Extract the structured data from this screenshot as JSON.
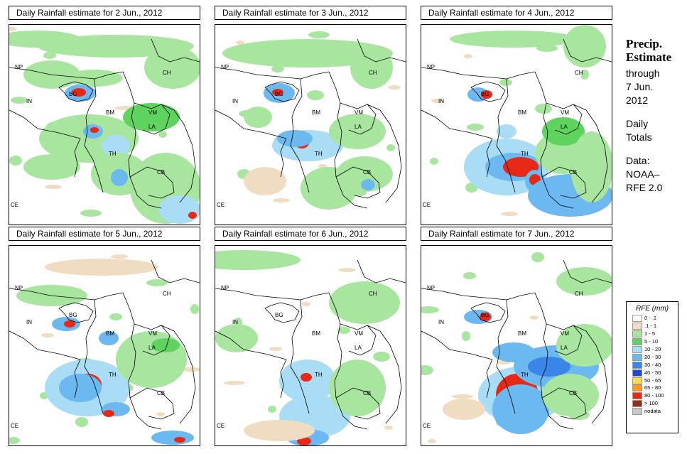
{
  "panels": [
    {
      "title": "Daily Rainfall estimate for  2 Jun., 2012"
    },
    {
      "title": "Daily Rainfall estimate for  3 Jun., 2012"
    },
    {
      "title": "Daily Rainfall estimate for  4 Jun., 2012"
    },
    {
      "title": "Daily Rainfall estimate for  5 Jun., 2012"
    },
    {
      "title": "Daily Rainfall estimate for  6 Jun., 2012"
    },
    {
      "title": "Daily Rainfall estimate for  7 Jun., 2012"
    }
  ],
  "map_labels": {
    "np": "NP",
    "ch": "CH",
    "in": "IN",
    "bg": "BG",
    "bm": "BM",
    "vm": "VM",
    "la": "LA",
    "th": "TH",
    "cb": "CB",
    "ce": "CE"
  },
  "sidebar": {
    "heading_1": "Precip.",
    "heading_2": "Estimate",
    "line_through": "through",
    "line_date": "7 Jun.",
    "line_year": "2012",
    "line_daily": "Daily",
    "line_totals": "Totals",
    "line_data": "Data:",
    "line_noaa": "NOAA–",
    "line_rfe": "RFE 2.0"
  },
  "legend": {
    "title": "RFE (mm)",
    "items": [
      {
        "label": "0 - .1",
        "color": "#ffffff"
      },
      {
        "label": ".1 - 1",
        "color": "#f0dcc0"
      },
      {
        "label": "1 - 5",
        "color": "#a8e6a0"
      },
      {
        "label": "5 - 10",
        "color": "#5ed35e"
      },
      {
        "label": "10 - 20",
        "color": "#a9dcf5"
      },
      {
        "label": "20 - 30",
        "color": "#6cb8f0"
      },
      {
        "label": "30 - 40",
        "color": "#3a86e8"
      },
      {
        "label": "40 - 50",
        "color": "#1e48d0"
      },
      {
        "label": "50 - 65",
        "color": "#ffdc50"
      },
      {
        "label": "65 - 80",
        "color": "#ff9a1e"
      },
      {
        "label": "80 - 100",
        "color": "#e62814"
      },
      {
        "label": "> 100",
        "color": "#962d1e"
      },
      {
        "label": "nodata",
        "color": "#c8c8c8"
      }
    ]
  }
}
